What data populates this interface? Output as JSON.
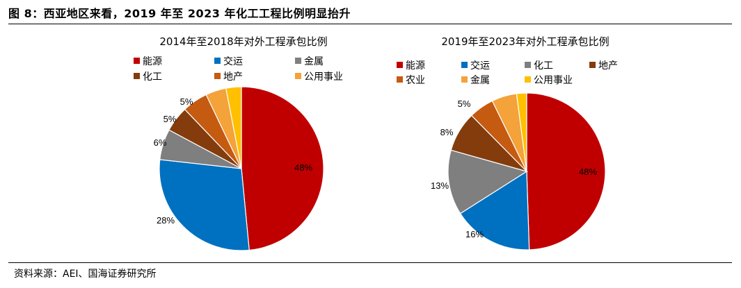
{
  "figure_title": "图 8：西亚地区来看，2019 年至 2023 年化工工程比例明显抬升",
  "source": "资料来源：AEI、国海证券研究所",
  "chart_data": [
    {
      "type": "pie",
      "title": "2014年至2018年对外工程承包比例",
      "start_angle": 0,
      "legend_placement": "top",
      "slices": [
        {
          "name": "能源",
          "value": 48,
          "label": "48%",
          "color": "#C00000"
        },
        {
          "name": "交运",
          "value": 28,
          "label": "28%",
          "color": "#0070C0"
        },
        {
          "name": "金属",
          "value": 6,
          "label": "6%",
          "color": "#7F7F7F"
        },
        {
          "name": "化工",
          "value": 5,
          "label": "5%",
          "color": "#843C0C"
        },
        {
          "name": "地产",
          "value": 5,
          "label": "5%",
          "color": "#C55A11"
        },
        {
          "name": "公用事业",
          "value": 4,
          "label": "",
          "color": "#F4A23A"
        },
        {
          "name": "",
          "value": 3,
          "label": "",
          "color": "#FFC000"
        }
      ]
    },
    {
      "type": "pie",
      "title": "2019年至2023年对外工程承包比例",
      "start_angle": 0,
      "legend_placement": "top",
      "slices": [
        {
          "name": "能源",
          "value": 48,
          "label": "48%",
          "color": "#C00000"
        },
        {
          "name": "交运",
          "value": 16,
          "label": "16%",
          "color": "#0070C0"
        },
        {
          "name": "化工",
          "value": 13,
          "label": "13%",
          "color": "#7F7F7F"
        },
        {
          "name": "地产",
          "value": 8,
          "label": "8%",
          "color": "#843C0C"
        },
        {
          "name": "农业",
          "value": 5,
          "label": "5%",
          "color": "#C55A11"
        },
        {
          "name": "金属",
          "value": 5,
          "label": "",
          "color": "#F4A23A"
        },
        {
          "name": "公用事业",
          "value": 2,
          "label": "",
          "color": "#FFC000"
        }
      ]
    }
  ]
}
